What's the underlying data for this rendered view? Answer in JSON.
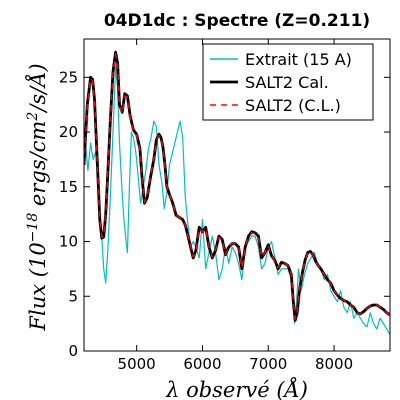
{
  "chart_data": {
    "type": "line",
    "title": "04D1dc : Spectre (Z=0.211)",
    "xlabel": "λ observé (Å)",
    "ylabel": "Flux (10^-18 ergs/cm^2/s/Å)",
    "xlim": [
      4200,
      8850
    ],
    "ylim": [
      0,
      28.5
    ],
    "xticks": [
      5000,
      6000,
      7000,
      8000
    ],
    "yticks": [
      0,
      5,
      10,
      15,
      20,
      25
    ],
    "grid": false,
    "legend_position": "top-right",
    "series": [
      {
        "name": "Extrait (15 A)",
        "color": "#00bfbf",
        "style": "solid-noisy",
        "x": [
          4200,
          4230,
          4260,
          4300,
          4340,
          4380,
          4420,
          4460,
          4500,
          4530,
          4560,
          4600,
          4640,
          4680,
          4710,
          4740,
          4770,
          4800,
          4830,
          4860,
          4890,
          4920,
          4950,
          4980,
          5000,
          5030,
          5060,
          5100,
          5140,
          5180,
          5220,
          5260,
          5300,
          5340,
          5380,
          5420,
          5460,
          5500,
          5540,
          5580,
          5620,
          5660,
          5700,
          5740,
          5780,
          5820,
          5860,
          5900,
          5950,
          6000,
          6050,
          6100,
          6150,
          6200,
          6250,
          6300,
          6350,
          6400,
          6450,
          6500,
          6550,
          6600,
          6650,
          6700,
          6750,
          6800,
          6850,
          6900,
          6950,
          7000,
          7050,
          7100,
          7150,
          7200,
          7250,
          7300,
          7350,
          7400,
          7430,
          7460,
          7500,
          7550,
          7600,
          7650,
          7700,
          7750,
          7800,
          7850,
          7900,
          7950,
          8000,
          8050,
          8100,
          8150,
          8200,
          8250,
          8300,
          8350,
          8400,
          8450,
          8500,
          8550,
          8600,
          8650,
          8700,
          8750,
          8800,
          8850
        ],
        "y": [
          17,
          18.5,
          16.5,
          19,
          17.5,
          18.2,
          14,
          11.5,
          7.5,
          6.2,
          9,
          14,
          20,
          26,
          24,
          19,
          15.5,
          12.5,
          10.5,
          9,
          15,
          20,
          19.5,
          18.5,
          17.5,
          15.5,
          13.5,
          15,
          16.5,
          18.5,
          19.5,
          21,
          20.5,
          17,
          15.5,
          13,
          14.5,
          17,
          18,
          19,
          20,
          21,
          19.5,
          14,
          11.5,
          9.5,
          10,
          9.5,
          8.5,
          12,
          7.5,
          9,
          10.5,
          9,
          6.5,
          7.5,
          9.5,
          8,
          9.5,
          9,
          8,
          6.5,
          9.5,
          10,
          10.5,
          10.5,
          9.5,
          7.5,
          8,
          9.5,
          10,
          8.5,
          7,
          7.5,
          7.5,
          7.5,
          6.5,
          2.5,
          4.5,
          7.5,
          5.5,
          7,
          8,
          8.5,
          9,
          8,
          7.5,
          6.5,
          7,
          5.5,
          5,
          4.5,
          5.5,
          4,
          3.5,
          4.5,
          3,
          3.5,
          3,
          2.5,
          2.2,
          3.5,
          2.5,
          2,
          3,
          2.5,
          2,
          1.5
        ]
      },
      {
        "name": "SALT2 Cal.",
        "color": "#000000",
        "style": "solid-thick",
        "x": [
          4200,
          4250,
          4300,
          4330,
          4360,
          4400,
          4440,
          4470,
          4500,
          4530,
          4560,
          4600,
          4640,
          4680,
          4710,
          4740,
          4780,
          4820,
          4860,
          4900,
          4950,
          5000,
          5050,
          5080,
          5120,
          5160,
          5200,
          5260,
          5300,
          5340,
          5370,
          5400,
          5430,
          5460,
          5500,
          5550,
          5600,
          5650,
          5700,
          5740,
          5780,
          5820,
          5860,
          5900,
          5950,
          6000,
          6050,
          6100,
          6150,
          6200,
          6250,
          6300,
          6350,
          6400,
          6450,
          6500,
          6550,
          6600,
          6650,
          6700,
          6750,
          6800,
          6850,
          6900,
          6950,
          7000,
          7050,
          7100,
          7150,
          7200,
          7250,
          7300,
          7350,
          7380,
          7410,
          7440,
          7480,
          7520,
          7560,
          7600,
          7640,
          7680,
          7720,
          7760,
          7800,
          7850,
          7900,
          7950,
          8000,
          8050,
          8100,
          8150,
          8200,
          8250,
          8300,
          8350,
          8400,
          8450,
          8500,
          8550,
          8600,
          8650,
          8700,
          8750,
          8800,
          8850
        ],
        "y": [
          17,
          22.5,
          25,
          24.8,
          23,
          17.5,
          12,
          10.3,
          10.4,
          12.5,
          16,
          21,
          25.5,
          27.3,
          26.3,
          22.5,
          21.8,
          23.5,
          23.3,
          21.5,
          20.2,
          19.8,
          18.5,
          16,
          13.5,
          14,
          15.5,
          17.5,
          19.3,
          19.8,
          19.5,
          18.6,
          17,
          15,
          14.3,
          13.5,
          12.4,
          12.2,
          12,
          11.5,
          10.5,
          9.5,
          8.5,
          9.2,
          11.3,
          10.9,
          11.3,
          9.5,
          8.5,
          9.2,
          10.5,
          10.2,
          8.8,
          9.5,
          9.8,
          9.8,
          9.5,
          7.5,
          9.5,
          10.5,
          10.9,
          10.8,
          10.5,
          8.5,
          9,
          9.7,
          8.7,
          8.3,
          7.5,
          8.1,
          8,
          7.8,
          7,
          4.5,
          2.8,
          3.5,
          5.8,
          7.2,
          8.3,
          9,
          9.1,
          8.8,
          8.2,
          7.8,
          7.5,
          7,
          6.5,
          6.2,
          5.5,
          5.1,
          4.8,
          4.6,
          4.5,
          4.2,
          4,
          3.5,
          3.4,
          3.6,
          3.9,
          4.1,
          4.2,
          4.2,
          4,
          3.8,
          3.5,
          3.3
        ]
      },
      {
        "name": "SALT2 (C.L.)",
        "color": "#ff0000",
        "style": "dashed",
        "x": [
          4200,
          4250,
          4300,
          4330,
          4360,
          4400,
          4440,
          4470,
          4500,
          4530,
          4560,
          4600,
          4640,
          4680,
          4710,
          4740,
          4780,
          4820,
          4860,
          4900,
          4950,
          5000,
          5050,
          5080,
          5120,
          5160,
          5200,
          5260,
          5300,
          5340,
          5370,
          5400,
          5430,
          5460,
          5500,
          5550,
          5600,
          5650,
          5700,
          5740,
          5780,
          5820,
          5860,
          5900,
          5950,
          6000,
          6050,
          6100,
          6150,
          6200,
          6250,
          6300,
          6350,
          6400,
          6450,
          6500,
          6550,
          6600,
          6650,
          6700,
          6750,
          6800,
          6850,
          6900,
          6950,
          7000,
          7050,
          7100,
          7150,
          7200,
          7250,
          7300,
          7350,
          7380,
          7410,
          7440,
          7480,
          7520,
          7560,
          7600,
          7640,
          7680,
          7720,
          7760,
          7800,
          7850,
          7900,
          7950,
          8000,
          8050,
          8100,
          8150,
          8200,
          8250,
          8300,
          8350,
          8400,
          8450,
          8500,
          8550,
          8600,
          8650,
          8700,
          8750,
          8800,
          8850
        ],
        "y": [
          17,
          22.4,
          24.9,
          24.7,
          23,
          17.4,
          12,
          10.4,
          10.5,
          12.6,
          16,
          21,
          25.4,
          27.1,
          26.2,
          22.4,
          21.7,
          23.3,
          23.2,
          21.4,
          20.1,
          19.7,
          18.4,
          16,
          13.6,
          14.1,
          15.6,
          17.5,
          19.2,
          19.7,
          19.4,
          18.5,
          16.9,
          15,
          14.3,
          13.5,
          12.4,
          12.2,
          12,
          11.5,
          10.5,
          9.6,
          8.6,
          9.2,
          11.2,
          10.9,
          11.2,
          9.5,
          8.6,
          9.2,
          10.4,
          10.1,
          8.8,
          9.5,
          9.8,
          9.8,
          9.5,
          7.6,
          9.5,
          10.4,
          10.8,
          10.7,
          10.4,
          8.6,
          9,
          9.6,
          8.7,
          8.3,
          7.6,
          8.1,
          8,
          7.8,
          7,
          4.6,
          2.9,
          3.6,
          5.8,
          7.2,
          8.3,
          9,
          9.1,
          8.8,
          8.2,
          7.8,
          7.5,
          7,
          6.5,
          6.2,
          5.5,
          5.1,
          4.8,
          4.6,
          4.5,
          4.2,
          4,
          3.5,
          3.4,
          3.6,
          3.9,
          4.1,
          4.2,
          4.2,
          4,
          3.8,
          3.5,
          3.3
        ]
      }
    ]
  }
}
